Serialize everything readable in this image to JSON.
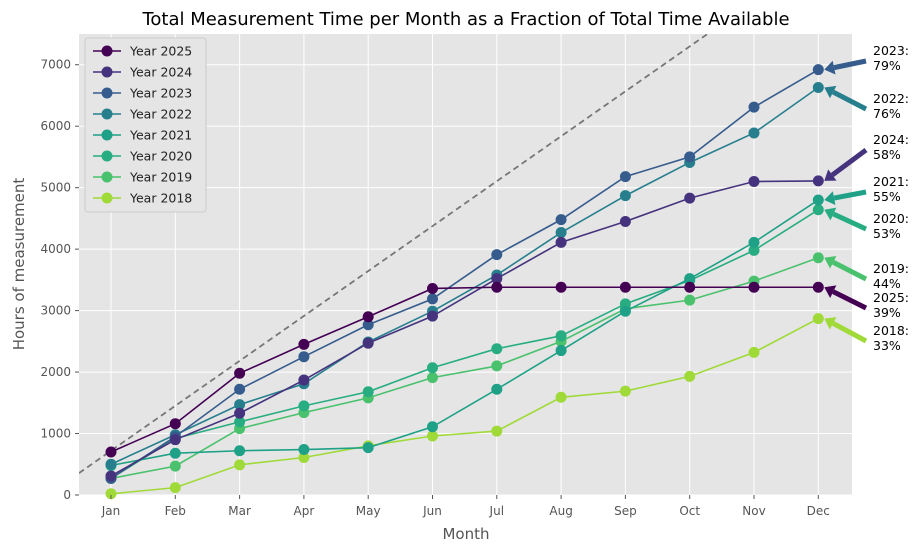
{
  "chart_data": {
    "type": "line",
    "title": "Total Measurement Time per Month as a Fraction of Total Time Available",
    "xlabel": "Month",
    "ylabel": "Hours of measurement",
    "categories": [
      "Jan",
      "Feb",
      "Mar",
      "Apr",
      "May",
      "Jun",
      "Jul",
      "Aug",
      "Sep",
      "Oct",
      "Nov",
      "Dec"
    ],
    "ylim": [
      0,
      7500
    ],
    "yticks": [
      0,
      1000,
      2000,
      3000,
      4000,
      5000,
      6000,
      7000
    ],
    "grid": true,
    "legend_position": "top-left",
    "reference_line": {
      "style": "dashed",
      "color": "#777777",
      "x": [
        0,
        11
      ],
      "y": [
        720,
        8760
      ]
    },
    "series": [
      {
        "name": "Year 2025",
        "color": "#440154",
        "values": [
          700,
          1160,
          1980,
          2450,
          2900,
          3360,
          3380,
          3380,
          3380,
          3380,
          3380,
          3380
        ],
        "annotation": "2025:\n39%"
      },
      {
        "name": "Year 2024",
        "color": "#46337e",
        "values": [
          310,
          900,
          1330,
          1870,
          2470,
          2910,
          3520,
          4110,
          4450,
          4830,
          5100,
          5110
        ],
        "annotation": "2024:\n58%"
      },
      {
        "name": "Year 2023",
        "color": "#365c8d",
        "values": [
          270,
          950,
          1720,
          2250,
          2770,
          3190,
          3910,
          4480,
          5180,
          5500,
          6310,
          6920
        ],
        "annotation": "2023:\n79%"
      },
      {
        "name": "Year 2022",
        "color": "#277f8e",
        "values": [
          500,
          980,
          1470,
          1810,
          2490,
          2990,
          3580,
          4270,
          4870,
          5410,
          5890,
          6630
        ],
        "annotation": "2022:\n76%"
      },
      {
        "name": "Year 2021",
        "color": "#1fa187",
        "values": [
          480,
          680,
          720,
          740,
          770,
          1110,
          1720,
          2350,
          2990,
          3520,
          4110,
          4800
        ],
        "annotation": "2021:\n55%"
      },
      {
        "name": "Year 2020",
        "color": "#27ad81",
        "values": [
          270,
          920,
          1190,
          1450,
          1680,
          2070,
          2380,
          2590,
          3110,
          3490,
          3980,
          4640
        ],
        "annotation": "2020:\n53%"
      },
      {
        "name": "Year 2019",
        "color": "#4ac16d",
        "values": [
          270,
          470,
          1080,
          1340,
          1580,
          1910,
          2100,
          2500,
          3030,
          3170,
          3480,
          3860
        ],
        "annotation": "2019:\n44%"
      },
      {
        "name": "Year 2018",
        "color": "#a0da39",
        "values": [
          20,
          120,
          490,
          610,
          800,
          960,
          1040,
          1590,
          1690,
          1930,
          2320,
          2870
        ],
        "annotation": "2018:\n33%"
      }
    ]
  }
}
